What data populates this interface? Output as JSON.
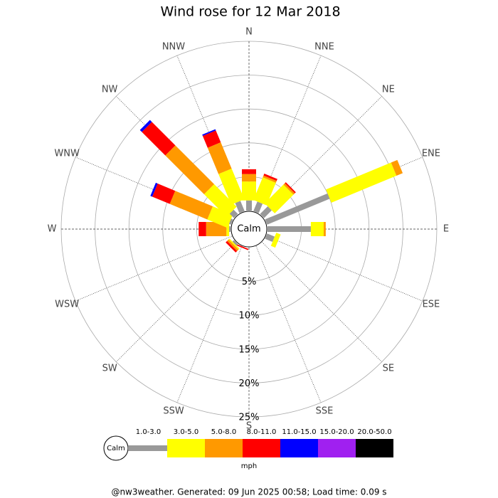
{
  "chart_data": {
    "type": "rose",
    "title": "Wind rose for 12 Mar 2018",
    "categories": [
      "N",
      "NNE",
      "NE",
      "ENE",
      "E",
      "ESE",
      "SE",
      "SSE",
      "S",
      "SSW",
      "SW",
      "WSW",
      "W",
      "WNW",
      "NW",
      "NNW"
    ],
    "rlim": [
      0,
      25
    ],
    "rticks": [
      {
        "value": 5,
        "label": "5%"
      },
      {
        "value": 10,
        "label": "10%"
      },
      {
        "value": 15,
        "label": "15%"
      },
      {
        "value": 20,
        "label": "20%"
      },
      {
        "value": 25,
        "label": "25%"
      }
    ],
    "calm_label": "Calm",
    "legend_title": "mph",
    "series": [
      {
        "name": "1.0-3.0",
        "color": "#999999",
        "values": [
          1.5,
          1.5,
          1.6,
          10,
          6.4,
          1.2,
          0,
          0,
          0,
          0,
          0.3,
          0,
          0.2,
          0.3,
          0.9,
          1.6
        ]
      },
      {
        "name": "3.0-5.0",
        "color": "#ffff00",
        "values": [
          2.8,
          3.6,
          3.9,
          10.4,
          1.9,
          0.7,
          0,
          0,
          0,
          0,
          0.2,
          0,
          0.4,
          3.2,
          4.7,
          4.9
        ]
      },
      {
        "name": "5.0-8.0",
        "color": "#ff9900",
        "values": [
          1.1,
          0.3,
          0.3,
          1.0,
          0.3,
          0,
          0,
          0,
          0,
          0,
          0.3,
          0,
          3.0,
          6.0,
          8.1,
          4.2
        ]
      },
      {
        "name": "8.0-11.0",
        "color": "#ff0000",
        "values": [
          0.7,
          0.3,
          0.2,
          0,
          0,
          0,
          0,
          0,
          0,
          0.2,
          0.3,
          0,
          1.1,
          2.8,
          4.9,
          1.9
        ]
      },
      {
        "name": "11.0-15.0",
        "color": "#0000ff",
        "values": [
          0,
          0,
          0,
          0,
          0,
          0,
          0,
          0,
          0,
          0,
          0,
          0,
          0,
          0.3,
          0.4,
          0.2
        ]
      },
      {
        "name": "15.0-20.0",
        "color": "#a020f0",
        "values": [
          0,
          0,
          0,
          0,
          0,
          0,
          0,
          0,
          0,
          0,
          0,
          0,
          0,
          0,
          0,
          0
        ]
      },
      {
        "name": "20.0-50.0",
        "color": "#000000",
        "values": [
          0,
          0,
          0,
          0,
          0,
          0,
          0,
          0,
          0,
          0,
          0,
          0,
          0,
          0,
          0,
          0
        ]
      }
    ],
    "footer": "@nw3weather. Generated: 09 Jun 2025 00:58; Load time: 0.09 s"
  }
}
